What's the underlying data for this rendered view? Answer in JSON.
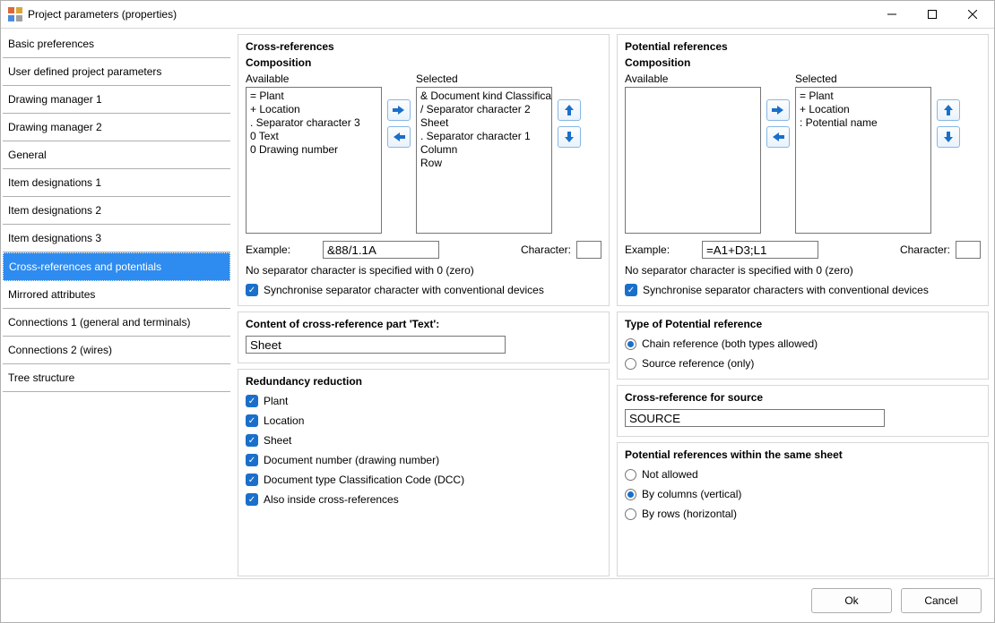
{
  "window": {
    "title": "Project parameters (properties)"
  },
  "sidebar": {
    "items": [
      {
        "label": "Basic preferences"
      },
      {
        "label": "User defined project parameters"
      },
      {
        "label": "Drawing manager 1"
      },
      {
        "label": "Drawing manager 2"
      },
      {
        "label": "General"
      },
      {
        "label": "Item designations 1"
      },
      {
        "label": "Item designations 2"
      },
      {
        "label": "Item designations 3"
      },
      {
        "label": "Cross-references and potentials"
      },
      {
        "label": "Mirrored attributes"
      },
      {
        "label": "Connections 1 (general and terminals)"
      },
      {
        "label": "Connections 2 (wires)"
      },
      {
        "label": "Tree structure"
      }
    ],
    "selected_index": 8
  },
  "cross_references": {
    "header": "Cross-references",
    "composition": {
      "title": "Composition",
      "available_label": "Available",
      "selected_label": "Selected",
      "available": [
        "= Plant",
        "+ Location",
        ". Separator character 3",
        "0 Text",
        "0 Drawing number"
      ],
      "selected": [
        "& Document kind Classification Code (DCC)",
        "/ Separator character 2",
        "Sheet",
        ". Separator character 1",
        "Column",
        "Row"
      ],
      "example_label": "Example:",
      "example_value": "&88/1.1A",
      "character_label": "Character:",
      "character_value": "",
      "note": "No separator character is specified with 0 (zero)",
      "sync_label": "Synchronise separator character with conventional devices"
    },
    "content_text": {
      "title": "Content of cross-reference part 'Text':",
      "value": "Sheet"
    },
    "redundancy": {
      "title": "Redundancy reduction",
      "items": [
        {
          "label": "Plant",
          "checked": true
        },
        {
          "label": "Location",
          "checked": true
        },
        {
          "label": "Sheet",
          "checked": true
        },
        {
          "label": "Document number (drawing number)",
          "checked": true
        },
        {
          "label": "Document type Classification Code (DCC)",
          "checked": true
        },
        {
          "label": "Also inside cross-references",
          "checked": true
        }
      ]
    }
  },
  "potential_references": {
    "header": "Potential references",
    "composition": {
      "title": "Composition",
      "available_label": "Available",
      "selected_label": "Selected",
      "available": [],
      "selected": [
        "= Plant",
        "+ Location",
        ": Potential name"
      ],
      "example_label": "Example:",
      "example_value": "=A1+D3;L1",
      "character_label": "Character:",
      "character_value": "",
      "note": "No separator character is specified with 0 (zero)",
      "sync_label": "Synchronise separator characters with conventional devices"
    },
    "type": {
      "title": "Type of Potential reference",
      "options": [
        {
          "label": "Chain reference (both types allowed)",
          "checked": true
        },
        {
          "label": "Source reference (only)",
          "checked": false
        }
      ]
    },
    "source": {
      "title": "Cross-reference for source",
      "value": "SOURCE"
    },
    "within_sheet": {
      "title": "Potential references within the same sheet",
      "options": [
        {
          "label": "Not allowed",
          "checked": false
        },
        {
          "label": "By columns (vertical)",
          "checked": true
        },
        {
          "label": "By rows (horizontal)",
          "checked": false
        }
      ]
    }
  },
  "buttons": {
    "ok": "Ok",
    "cancel": "Cancel"
  },
  "colors": {
    "accent": "#1a6fca",
    "selected_bg": "#2e8bef",
    "border": "#d7d7d7",
    "input_border": "#767676"
  }
}
